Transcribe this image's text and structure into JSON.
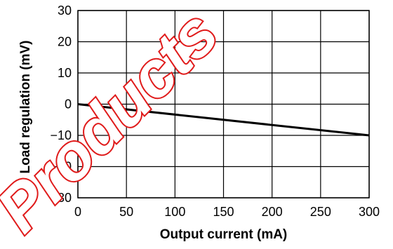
{
  "watermark": {
    "text": "Products",
    "color": "#e01a1a"
  },
  "colors": {
    "grid": "#000000",
    "line": "#000000",
    "background": "#ffffff"
  },
  "chart_data": {
    "type": "line",
    "xlabel": "Output current (mA)",
    "ylabel": "Load regulation (mV)",
    "xlim": [
      0,
      300
    ],
    "ylim": [
      -30,
      30
    ],
    "xticks": [
      0,
      50,
      100,
      150,
      200,
      250,
      300
    ],
    "yticks": [
      30,
      20,
      10,
      0,
      -10,
      -20,
      -30
    ],
    "xtick_labels": [
      "0",
      "50",
      "100",
      "150",
      "200",
      "250",
      "300"
    ],
    "ytick_labels": [
      "30",
      "20",
      "10",
      "0",
      "−10",
      "−20",
      "−30"
    ],
    "grid": true,
    "legend": "none",
    "series": [
      {
        "x": [
          0,
          300
        ],
        "y": [
          0,
          -10
        ]
      }
    ]
  }
}
